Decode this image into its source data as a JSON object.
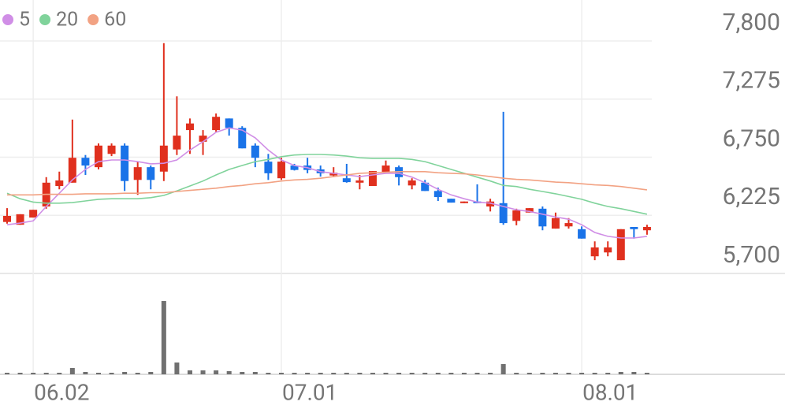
{
  "chart_data": {
    "type": "candlestick",
    "categories": [
      null,
      null,
      "06.02",
      null,
      null,
      null,
      null,
      null,
      null,
      null,
      null,
      null,
      null,
      null,
      null,
      null,
      null,
      null,
      null,
      null,
      null,
      "07.01",
      null,
      null,
      null,
      null,
      null,
      null,
      null,
      null,
      null,
      null,
      null,
      null,
      null,
      null,
      null,
      null,
      null,
      null,
      null,
      null,
      null,
      null,
      "08.01",
      null,
      null,
      null,
      null,
      null
    ],
    "open": [
      6165,
      6140,
      6205,
      6305,
      6490,
      6520,
      6745,
      6660,
      6780,
      6855,
      6545,
      6660,
      6620,
      6820,
      6995,
      6890,
      6995,
      7100,
      7015,
      6855,
      6710,
      6560,
      6675,
      6675,
      6640,
      6585,
      6560,
      6520,
      6490,
      6610,
      6660,
      6495,
      6520,
      6445,
      6375,
      6335,
      6350,
      6305,
      6335,
      6175,
      6250,
      6285,
      6105,
      6125,
      6100,
      5855,
      5890,
      5820,
      6120,
      6090
    ],
    "high": [
      6290,
      6235,
      6275,
      6570,
      6620,
      7090,
      6770,
      6875,
      6875,
      6875,
      6710,
      6675,
      7780,
      7300,
      7100,
      6995,
      7145,
      7100,
      7030,
      6875,
      6780,
      6745,
      6690,
      6745,
      6675,
      6660,
      6690,
      6590,
      6625,
      6720,
      6675,
      6560,
      6545,
      6475,
      6375,
      6350,
      6505,
      6375,
      7160,
      6285,
      6290,
      6305,
      6250,
      6200,
      6125,
      5990,
      5990,
      6100,
      6120,
      6140
    ],
    "low": [
      6150,
      6140,
      6205,
      6285,
      6460,
      6520,
      6590,
      6640,
      6760,
      6445,
      6410,
      6460,
      6535,
      6770,
      6780,
      6770,
      6980,
      6945,
      6830,
      6660,
      6545,
      6545,
      6630,
      6605,
      6575,
      6570,
      6520,
      6460,
      6490,
      6605,
      6495,
      6460,
      6445,
      6355,
      6340,
      6335,
      6335,
      6260,
      6140,
      6135,
      6250,
      6090,
      6105,
      6105,
      6015,
      5820,
      5855,
      5820,
      6015,
      6050
    ],
    "close": [
      6220,
      6235,
      6275,
      6520,
      6540,
      6745,
      6675,
      6855,
      6855,
      6535,
      6660,
      6545,
      6855,
      6945,
      7055,
      6945,
      7115,
      7015,
      6830,
      6745,
      6605,
      6710,
      6635,
      6635,
      6605,
      6610,
      6525,
      6540,
      6625,
      6675,
      6570,
      6540,
      6445,
      6390,
      6340,
      6350,
      6335,
      6350,
      6155,
      6270,
      6290,
      6125,
      6200,
      6155,
      6015,
      5935,
      5935,
      6100,
      6100,
      6120
    ],
    "up_color": "#e0301e",
    "down_color": "#1a73e8",
    "series": [
      {
        "name": "5",
        "color": "#d08ee6",
        "values": [
          6140,
          6155,
          6175,
          6305,
          6425,
          6545,
          6640,
          6710,
          6725,
          6725,
          6710,
          6690,
          6695,
          6725,
          6815,
          6890,
          6975,
          7015,
          6995,
          6925,
          6815,
          6725,
          6675,
          6655,
          6620,
          6605,
          6590,
          6575,
          6590,
          6605,
          6605,
          6570,
          6520,
          6460,
          6410,
          6375,
          6345,
          6335,
          6305,
          6275,
          6260,
          6235,
          6210,
          6190,
          6140,
          6070,
          6035,
          6020,
          6020,
          6035
        ]
      },
      {
        "name": "20",
        "color": "#80d39b",
        "values": [
          6425,
          6375,
          6345,
          6335,
          6335,
          6340,
          6355,
          6370,
          6375,
          6375,
          6375,
          6385,
          6405,
          6445,
          6490,
          6535,
          6590,
          6640,
          6675,
          6710,
          6730,
          6755,
          6770,
          6775,
          6775,
          6770,
          6760,
          6745,
          6740,
          6740,
          6740,
          6730,
          6710,
          6675,
          6640,
          6605,
          6570,
          6535,
          6495,
          6485,
          6460,
          6440,
          6420,
          6395,
          6370,
          6335,
          6305,
          6285,
          6260,
          6235
        ]
      },
      {
        "name": "60",
        "color": "#f2a283",
        "values": [
          6410,
          6410,
          6410,
          6415,
          6415,
          6415,
          6420,
          6420,
          6420,
          6425,
          6425,
          6430,
          6430,
          6440,
          6450,
          6460,
          6470,
          6485,
          6495,
          6510,
          6520,
          6535,
          6545,
          6550,
          6560,
          6575,
          6590,
          6605,
          6610,
          6615,
          6620,
          6620,
          6620,
          6610,
          6605,
          6600,
          6590,
          6575,
          6560,
          6550,
          6545,
          6535,
          6525,
          6520,
          6510,
          6500,
          6495,
          6485,
          6470,
          6455
        ]
      }
    ],
    "volume": [
      2,
      2,
      2,
      2,
      2,
      8,
      3,
      2,
      2,
      3,
      2,
      3,
      93,
      15,
      5,
      5,
      5,
      4,
      3,
      3,
      2,
      2,
      2,
      2,
      2,
      2,
      2,
      2,
      2,
      2,
      2,
      2,
      2,
      2,
      2,
      2,
      2,
      2,
      13,
      2,
      2,
      2,
      2,
      2,
      2,
      2,
      2,
      3,
      3,
      2
    ],
    "volume_color": "#707070",
    "volume_ylim": [
      0,
      128
    ],
    "ylim": [
      5700,
      7800
    ],
    "yticks": [
      {
        "value": 5700,
        "label": "5,700"
      },
      {
        "value": 6225,
        "label": "6,225"
      },
      {
        "value": 6750,
        "label": "6,750"
      },
      {
        "value": 7275,
        "label": "7,275"
      },
      {
        "value": 7800,
        "label": "7,800"
      }
    ],
    "grid": true
  }
}
